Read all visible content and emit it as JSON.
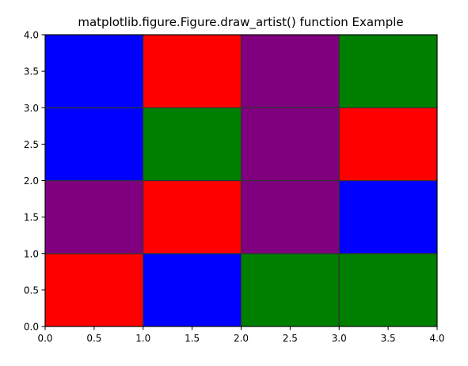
{
  "chart_data": {
    "type": "heatmap",
    "title": "matplotlib.figure.Figure.draw_artist() function Example",
    "xlabel": "",
    "ylabel": "",
    "xlim": [
      0.0,
      4.0
    ],
    "ylim": [
      0.0,
      4.0
    ],
    "x_ticks": [
      "0.0",
      "0.5",
      "1.0",
      "1.5",
      "2.0",
      "2.5",
      "3.0",
      "3.5",
      "4.0"
    ],
    "y_ticks": [
      "0.0",
      "0.5",
      "1.0",
      "1.5",
      "2.0",
      "2.5",
      "3.0",
      "3.5",
      "4.0"
    ],
    "grid": false,
    "colors": {
      "red": "#ff0000",
      "green": "#008000",
      "blue": "#0000ff",
      "purple": "#800080",
      "cell_edge": "#333333",
      "spine": "#000000"
    },
    "cells": [
      {
        "x": 0,
        "y": 0,
        "color": "red"
      },
      {
        "x": 1,
        "y": 0,
        "color": "blue"
      },
      {
        "x": 2,
        "y": 0,
        "color": "green"
      },
      {
        "x": 3,
        "y": 0,
        "color": "green"
      },
      {
        "x": 0,
        "y": 1,
        "color": "purple"
      },
      {
        "x": 1,
        "y": 1,
        "color": "red"
      },
      {
        "x": 2,
        "y": 1,
        "color": "purple"
      },
      {
        "x": 3,
        "y": 1,
        "color": "blue"
      },
      {
        "x": 0,
        "y": 2,
        "color": "blue"
      },
      {
        "x": 1,
        "y": 2,
        "color": "green"
      },
      {
        "x": 2,
        "y": 2,
        "color": "purple"
      },
      {
        "x": 3,
        "y": 2,
        "color": "red"
      },
      {
        "x": 0,
        "y": 3,
        "color": "blue"
      },
      {
        "x": 1,
        "y": 3,
        "color": "red"
      },
      {
        "x": 2,
        "y": 3,
        "color": "purple"
      },
      {
        "x": 3,
        "y": 3,
        "color": "green"
      }
    ]
  }
}
